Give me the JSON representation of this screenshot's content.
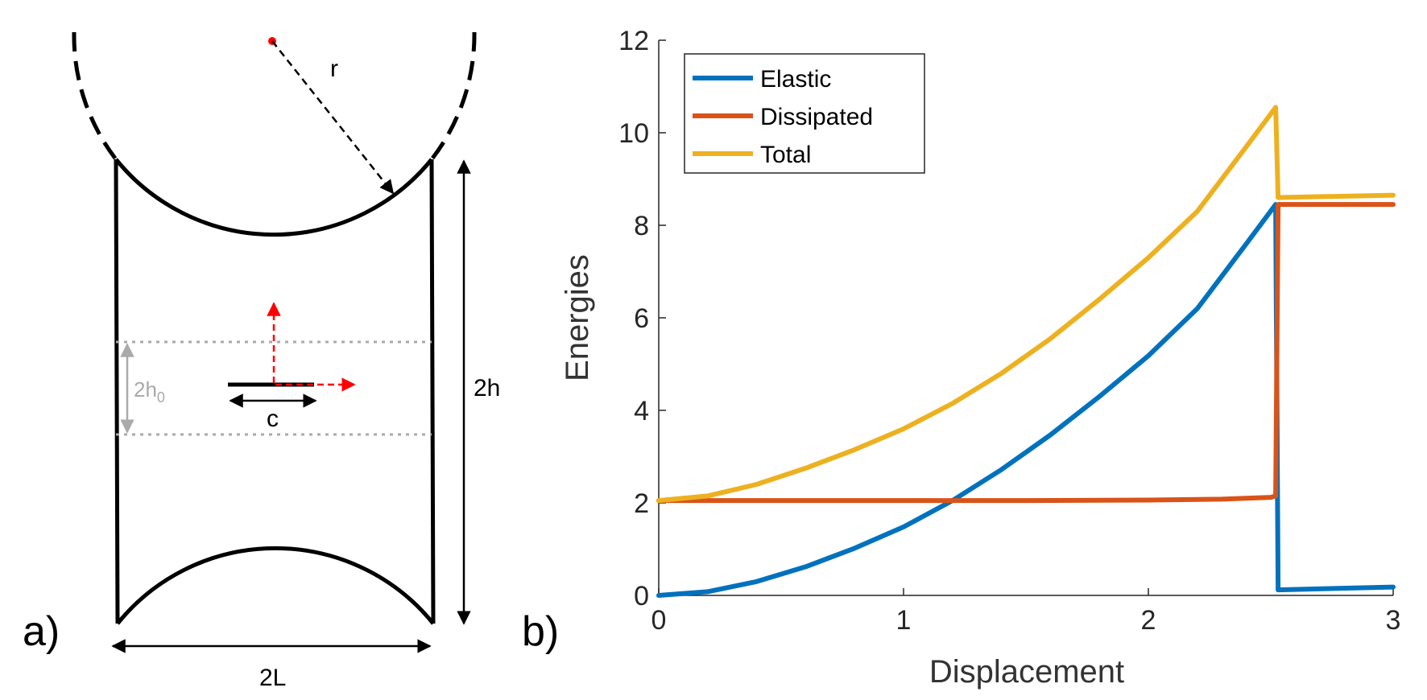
{
  "panel_a": {
    "label": "a)",
    "dim_r": "r",
    "dim_2h0_main": "2h",
    "dim_2h0_sub": "0",
    "dim_c": "c",
    "dim_2h": "2h",
    "dim_2L": "2L",
    "colors": {
      "outline": "#000000",
      "guide": "#aaaaaa",
      "arrow": "#ff0000"
    }
  },
  "panel_b": {
    "label": "b)"
  },
  "chart_data": {
    "type": "line",
    "xlabel": "Displacement",
    "ylabel": "Energies",
    "xlim": [
      0,
      3
    ],
    "ylim": [
      0,
      12
    ],
    "xticks": [
      0,
      1,
      2,
      3
    ],
    "yticks": [
      0,
      2,
      4,
      6,
      8,
      10,
      12
    ],
    "grid": false,
    "legend_position": "top-left",
    "series": [
      {
        "name": "Elastic",
        "color": "#0072BD",
        "x": [
          0,
          0.2,
          0.4,
          0.6,
          0.8,
          1.0,
          1.2,
          1.4,
          1.6,
          1.8,
          2.0,
          2.2,
          2.4,
          2.52,
          2.53,
          3.0
        ],
        "values": [
          0.0,
          0.08,
          0.3,
          0.62,
          1.02,
          1.48,
          2.05,
          2.72,
          3.47,
          4.3,
          5.18,
          6.2,
          7.6,
          8.45,
          0.12,
          0.18
        ]
      },
      {
        "name": "Dissipated",
        "color": "#D95319",
        "x": [
          0,
          0.5,
          1.0,
          1.5,
          2.0,
          2.3,
          2.5,
          2.52,
          2.53,
          3.0
        ],
        "values": [
          2.05,
          2.05,
          2.05,
          2.05,
          2.06,
          2.08,
          2.12,
          2.15,
          8.45,
          8.45
        ]
      },
      {
        "name": "Total",
        "color": "#EDB120",
        "x": [
          0,
          0.2,
          0.4,
          0.6,
          0.8,
          1.0,
          1.2,
          1.4,
          1.6,
          1.8,
          2.0,
          2.2,
          2.4,
          2.52,
          2.53,
          3.0
        ],
        "values": [
          2.05,
          2.15,
          2.4,
          2.75,
          3.15,
          3.6,
          4.15,
          4.8,
          5.55,
          6.4,
          7.3,
          8.3,
          9.7,
          10.55,
          8.6,
          8.65
        ]
      }
    ]
  }
}
